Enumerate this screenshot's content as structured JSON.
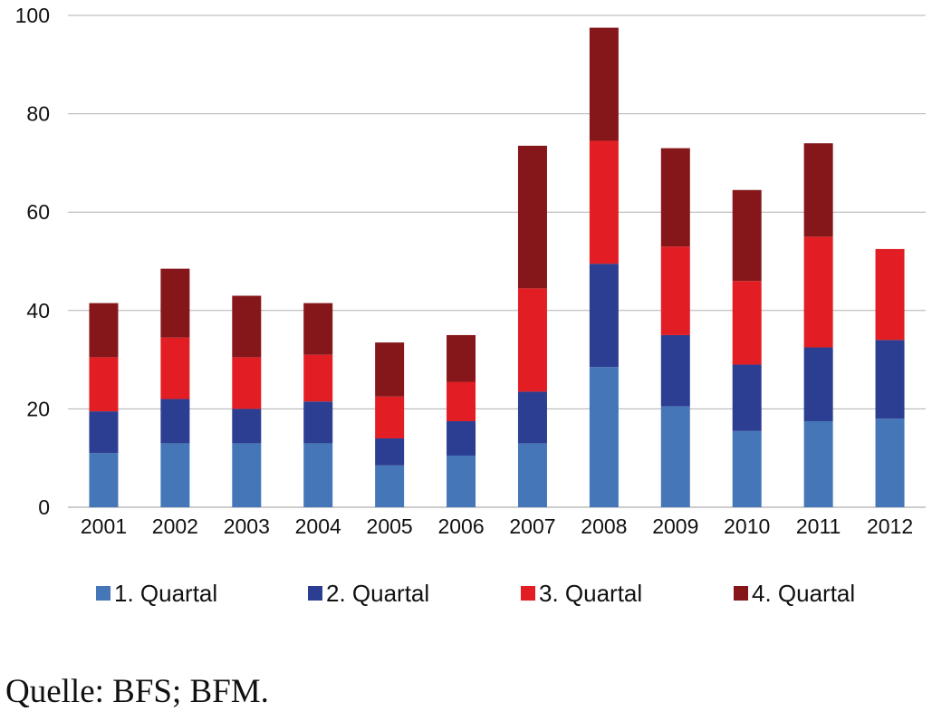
{
  "chart_data": {
    "type": "bar",
    "stacked": true,
    "categories": [
      "2001",
      "2002",
      "2003",
      "2004",
      "2005",
      "2006",
      "2007",
      "2008",
      "2009",
      "2010",
      "2011",
      "2012"
    ],
    "series": [
      {
        "name": "1. Quartal",
        "color": "#4577B8",
        "values": [
          11,
          13,
          13,
          13,
          8.5,
          10.5,
          13,
          28.5,
          20.5,
          15.5,
          17.5,
          18
        ]
      },
      {
        "name": "2. Quartal",
        "color": "#2C3E91",
        "values": [
          8.5,
          9,
          7,
          8.5,
          5.5,
          7,
          10.5,
          21,
          14.5,
          13.5,
          15,
          16
        ]
      },
      {
        "name": "3. Quartal",
        "color": "#E21E24",
        "values": [
          11,
          12.5,
          10.5,
          9.5,
          8.5,
          8,
          21,
          25,
          18,
          17,
          22.5,
          18.5
        ]
      },
      {
        "name": "4. Quartal",
        "color": "#85171B",
        "values": [
          11,
          14,
          12.5,
          10.5,
          11,
          9.5,
          29,
          23,
          20,
          18.5,
          19,
          0
        ]
      }
    ],
    "ylim": [
      0,
      100
    ],
    "yticks": [
      "0",
      "20",
      "40",
      "60",
      "80",
      "100"
    ],
    "grid": true,
    "legend_position": "bottom",
    "xlabel": "",
    "ylabel": "",
    "title": ""
  },
  "source_note": "Quelle: BFS; BFM."
}
